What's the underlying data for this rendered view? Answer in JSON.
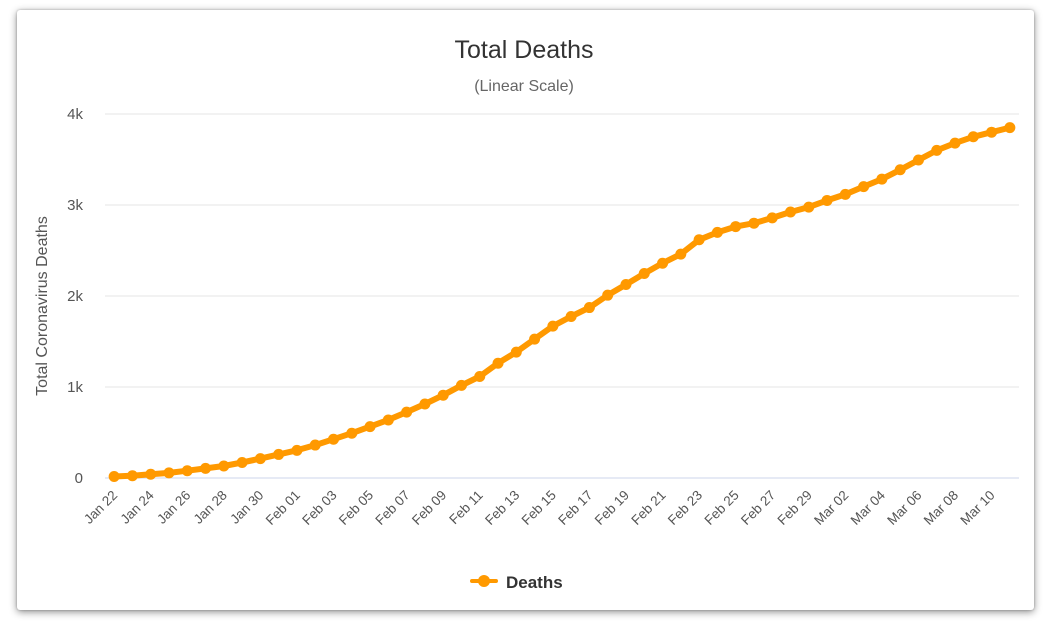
{
  "chart_data": {
    "type": "line",
    "title": "Total Deaths",
    "subtitle": "(Linear Scale)",
    "ylabel": "Total Coronavirus Deaths",
    "xlabel": "",
    "ylim": [
      0,
      4000
    ],
    "y_ticks": [
      0,
      1000,
      2000,
      3000,
      4000
    ],
    "y_tick_labels": [
      "0",
      "1k",
      "2k",
      "3k",
      "4k"
    ],
    "grid": true,
    "legend_position": "bottom-center",
    "line_color": "#FF9900",
    "categories": [
      "Jan 22",
      "Jan 23",
      "Jan 24",
      "Jan 25",
      "Jan 26",
      "Jan 27",
      "Jan 28",
      "Jan 29",
      "Jan 30",
      "Jan 31",
      "Feb 01",
      "Feb 02",
      "Feb 03",
      "Feb 04",
      "Feb 05",
      "Feb 06",
      "Feb 07",
      "Feb 08",
      "Feb 09",
      "Feb 10",
      "Feb 11",
      "Feb 12",
      "Feb 13",
      "Feb 14",
      "Feb 15",
      "Feb 16",
      "Feb 17",
      "Feb 18",
      "Feb 19",
      "Feb 20",
      "Feb 21",
      "Feb 22",
      "Feb 23",
      "Feb 24",
      "Feb 25",
      "Feb 26",
      "Feb 27",
      "Feb 28",
      "Feb 29",
      "Mar 01",
      "Mar 02",
      "Mar 03",
      "Mar 04",
      "Mar 05",
      "Mar 06",
      "Mar 07",
      "Mar 08",
      "Mar 09",
      "Mar 10",
      "Mar 11"
    ],
    "x_tick_labels": [
      "Jan 22",
      "Jan 24",
      "Jan 26",
      "Jan 28",
      "Jan 30",
      "Feb 01",
      "Feb 03",
      "Feb 05",
      "Feb 07",
      "Feb 09",
      "Feb 11",
      "Feb 13",
      "Feb 15",
      "Feb 17",
      "Feb 19",
      "Feb 21",
      "Feb 23",
      "Feb 25",
      "Feb 27",
      "Feb 29",
      "Mar 02",
      "Mar 04",
      "Mar 06",
      "Mar 08",
      "Mar 10"
    ],
    "series": [
      {
        "name": "Deaths",
        "values": [
          17,
          25,
          41,
          56,
          80,
          106,
          132,
          170,
          213,
          259,
          304,
          362,
          426,
          492,
          565,
          638,
          724,
          813,
          910,
          1018,
          1115,
          1261,
          1383,
          1526,
          1669,
          1775,
          1873,
          2009,
          2126,
          2247,
          2360,
          2460,
          2618,
          2699,
          2763,
          2800,
          2858,
          2923,
          2977,
          3050,
          3117,
          3202,
          3285,
          3387,
          3494,
          3600,
          3680,
          3750,
          3800,
          3850
        ]
      }
    ]
  }
}
